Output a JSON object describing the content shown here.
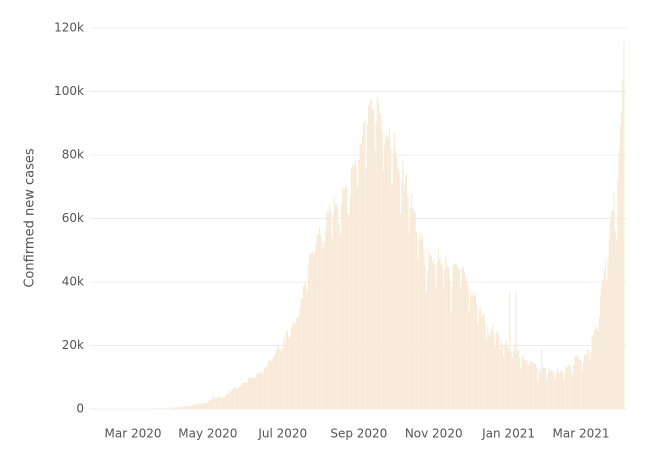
{
  "chart_data": {
    "type": "bar",
    "y_label": "Confirmed new cases",
    "color": "#f8e8d4",
    "grid": true,
    "ylim": [
      0,
      120000
    ],
    "yticks": [
      0,
      {
        "value": 20000,
        "label": "20k"
      },
      {
        "value": 40000,
        "label": "40k"
      },
      {
        "value": 60000,
        "label": "60k"
      },
      {
        "value": 80000,
        "label": "80k"
      },
      {
        "value": 100000,
        "label": "100k"
      },
      {
        "value": 120000,
        "label": "120k"
      }
    ],
    "categories": [
      null,
      null,
      null,
      null,
      null,
      null,
      null,
      null,
      null,
      null,
      null,
      null,
      null,
      null,
      null,
      null,
      null,
      null,
      null,
      null,
      null,
      null,
      null,
      null,
      null,
      null,
      null,
      null,
      null,
      "Mar 2020",
      null,
      null,
      null,
      null,
      null,
      null,
      null,
      null,
      null,
      null,
      null,
      null,
      null,
      null,
      null,
      null,
      null,
      null,
      null,
      null,
      null,
      null,
      null,
      null,
      null,
      null,
      null,
      null,
      null,
      null,
      null,
      null,
      null,
      null,
      null,
      null,
      null,
      null,
      null,
      null,
      null,
      null,
      null,
      null,
      null,
      null,
      null,
      null,
      null,
      null,
      null,
      null,
      null,
      null,
      null,
      null,
      null,
      null,
      null,
      null,
      "May 2020",
      null,
      null,
      null,
      null,
      null,
      null,
      null,
      null,
      null,
      null,
      null,
      null,
      null,
      null,
      null,
      null,
      null,
      null,
      null,
      null,
      null,
      null,
      null,
      null,
      null,
      null,
      null,
      null,
      null,
      null,
      null,
      null,
      null,
      null,
      null,
      null,
      null,
      null,
      null,
      null,
      null,
      null,
      null,
      null,
      null,
      null,
      null,
      null,
      null,
      null,
      null,
      null,
      null,
      null,
      null,
      null,
      null,
      null,
      null,
      null,
      "Jul 2020",
      null,
      null,
      null,
      null,
      null,
      null,
      null,
      null,
      null,
      null,
      null,
      null,
      null,
      null,
      null,
      null,
      null,
      null,
      null,
      null,
      null,
      null,
      null,
      null,
      null,
      null,
      null,
      null,
      null,
      null,
      null,
      null,
      null,
      null,
      null,
      null,
      null,
      null,
      null,
      null,
      null,
      null,
      null,
      null,
      null,
      null,
      null,
      null,
      null,
      null,
      null,
      null,
      null,
      null,
      null,
      null,
      null,
      null,
      null,
      null,
      null,
      "Sep 2020",
      null,
      null,
      null,
      null,
      null,
      null,
      null,
      null,
      null,
      null,
      null,
      null,
      null,
      null,
      null,
      null,
      null,
      null,
      null,
      null,
      null,
      null,
      null,
      null,
      null,
      null,
      null,
      null,
      null,
      null,
      null,
      null,
      null,
      null,
      null,
      null,
      null,
      null,
      null,
      null,
      null,
      null,
      null,
      null,
      null,
      null,
      null,
      null,
      null,
      null,
      null,
      null,
      null,
      null,
      null,
      null,
      null,
      null,
      null,
      null,
      "Nov 2020",
      null,
      null,
      null,
      null,
      null,
      null,
      null,
      null,
      null,
      null,
      null,
      null,
      null,
      null,
      null,
      null,
      null,
      null,
      null,
      null,
      null,
      null,
      null,
      null,
      null,
      null,
      null,
      null,
      null,
      null,
      null,
      null,
      null,
      null,
      null,
      null,
      null,
      null,
      null,
      null,
      null,
      null,
      null,
      null,
      null,
      null,
      null,
      null,
      null,
      null,
      null,
      null,
      null,
      null,
      null,
      null,
      null,
      null,
      null,
      null,
      "Jan 2021",
      null,
      null,
      null,
      null,
      null,
      null,
      null,
      null,
      null,
      null,
      null,
      null,
      null,
      null,
      null,
      null,
      null,
      null,
      null,
      null,
      null,
      null,
      null,
      null,
      null,
      null,
      null,
      null,
      null,
      null,
      null,
      null,
      null,
      null,
      null,
      null,
      null,
      null,
      null,
      null,
      null,
      null,
      null,
      null,
      null,
      null,
      null,
      null,
      null,
      null,
      null,
      null,
      null,
      null,
      null,
      null,
      null,
      null,
      "Mar 2021",
      null,
      null,
      null,
      null,
      null,
      null,
      null,
      null,
      null,
      null,
      null,
      null,
      null,
      null,
      null,
      null,
      null,
      null,
      null,
      null,
      null,
      null,
      null,
      null,
      null,
      null,
      null,
      null,
      null,
      null,
      null,
      null,
      null,
      null,
      null
    ],
    "values": [
      0,
      0,
      0,
      0,
      0,
      0,
      0,
      0,
      0,
      0,
      0,
      0,
      0,
      0,
      0,
      0,
      0,
      0,
      0,
      0,
      0,
      0,
      0,
      0,
      0,
      0,
      0,
      0,
      0,
      0,
      1,
      2,
      23,
      1,
      2,
      3,
      5,
      9,
      15,
      6,
      13,
      9,
      11,
      24,
      23,
      14,
      22,
      41,
      62,
      81,
      69,
      86,
      103,
      37,
      121,
      70,
      160,
      100,
      227,
      146,
      601,
      545,
      24,
      515,
      506,
      704,
      508,
      485,
      591,
      896,
      768,
      918,
      705,
      796,
      1076,
      1007,
      826,
      1054,
      1242,
      1540,
      1450,
      1650,
      1350,
      1800,
      1500,
      1900,
      1600,
      1870,
      1800,
      1850,
      2400,
      2600,
      2800,
      3000,
      3900,
      3500,
      3400,
      3300,
      3300,
      4200,
      3600,
      3500,
      3500,
      3700,
      3900,
      4900,
      5000,
      4600,
      5600,
      5600,
      6100,
      6600,
      6700,
      7000,
      6500,
      6400,
      7200,
      7200,
      7900,
      8300,
      8400,
      8100,
      8200,
      9600,
      9800,
      9900,
      9900,
      9700,
      9900,
      9900,
      11100,
      11100,
      11300,
      11500,
      11900,
      10700,
      12900,
      13600,
      13000,
      14700,
      15400,
      15400,
      14800,
      15900,
      17000,
      17300,
      18600,
      19900,
      19400,
      18700,
      18200,
      19100,
      22700,
      21000,
      24800,
      24400,
      22400,
      23100,
      25300,
      26500,
      27700,
      27100,
      28600,
      28500,
      29400,
      31900,
      34700,
      34800,
      38700,
      40000,
      39000,
      37100,
      45700,
      48900,
      48700,
      49900,
      48600,
      49000,
      52100,
      55100,
      55000,
      57100,
      54700,
      52800,
      50600,
      52500,
      56300,
      62500,
      61500,
      64400,
      62000,
      53600,
      60900,
      67000,
      64500,
      64500,
      63400,
      57900,
      55000,
      64600,
      69700,
      69000,
      69900,
      70000,
      61400,
      61000,
      67200,
      75800,
      77200,
      76500,
      78500,
      76400,
      69900,
      78400,
      83900,
      83300,
      86400,
      90600,
      90800,
      75800,
      89700,
      95700,
      96500,
      97600,
      94400,
      94300,
      81500,
      90100,
      97900,
      96400,
      93300,
      92600,
      87400,
      75100,
      83300,
      86500,
      86100,
      85300,
      88600,
      82200,
      70600,
      80500,
      86800,
      81500,
      79500,
      75800,
      74400,
      61300,
      72000,
      78500,
      70500,
      73300,
      74000,
      66700,
      55300,
      63500,
      67700,
      63400,
      62200,
      61900,
      55700,
      46800,
      54000,
      56000,
      53400,
      54400,
      50100,
      45100,
      36400,
      43800,
      49900,
      48600,
      48300,
      46000,
      46900,
      45200,
      38300,
      46300,
      50200,
      47600,
      45700,
      45900,
      38000,
      44200,
      47900,
      44900,
      44800,
      41100,
      30500,
      38600,
      45500,
      45600,
      45900,
      45200,
      44100,
      44000,
      37900,
      44400,
      45000,
      43000,
      41000,
      41800,
      38700,
      31100,
      36600,
      35600,
      36600,
      35500,
      36600,
      32900,
      26600,
      31500,
      32000,
      29400,
      30000,
      30200,
      27000,
      22100,
      26400,
      24000,
      22900,
      25100,
      26600,
      24100,
      19500,
      23900,
      24700,
      23100,
      18700,
      22300,
      20000,
      16400,
      20500,
      21800,
      20000,
      19100,
      37000,
      18200,
      16500,
      18100,
      20300,
      37200,
      18100,
      18600,
      16100,
      12600,
      15900,
      16900,
      15500,
      15100,
      15200,
      14000,
      13800,
      15200,
      15100,
      14500,
      14300,
      14200,
      13200,
      9100,
      12700,
      11700,
      18900,
      13100,
      13000,
      13000,
      8600,
      11400,
      12900,
      12400,
      12000,
      11700,
      11800,
      9100,
      11000,
      12900,
      11300,
      12100,
      12100,
      11600,
      9100,
      11600,
      13200,
      13200,
      13900,
      14200,
      12500,
      10600,
      13700,
      16700,
      16600,
      16500,
      16600,
      15500,
      15500,
      12300,
      14700,
      17400,
      16800,
      18700,
      18800,
      15400,
      17900,
      22800,
      23300,
      24900,
      25300,
      26300,
      24500,
      28900,
      35900,
      39700,
      40900,
      43800,
      46900,
      40700,
      47300,
      53500,
      59100,
      62300,
      62700,
      68000,
      56200,
      53500,
      72300,
      81500,
      89100,
      93200,
      103600,
      115700
    ]
  }
}
